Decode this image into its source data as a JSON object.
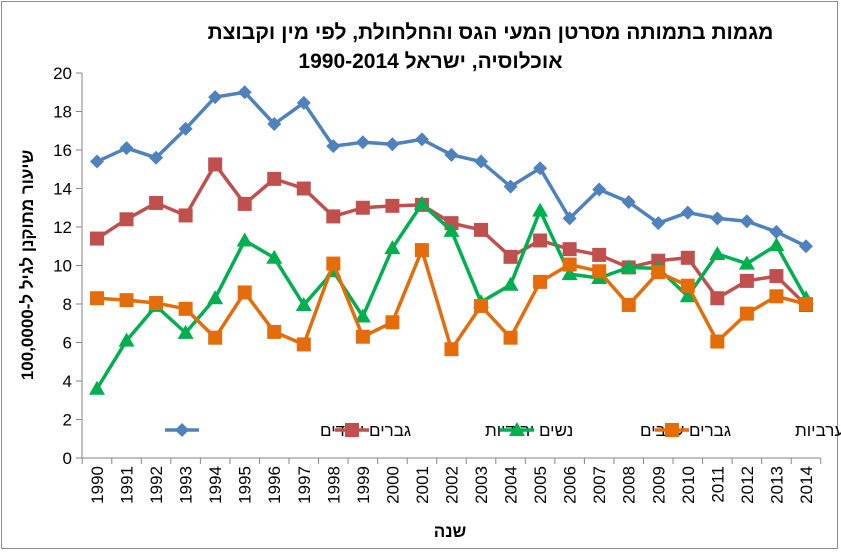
{
  "chart_data": {
    "type": "line",
    "title": "מגמות בתמותה מסרטן המעי הגס והחלחולת, לפי מין וקבוצת אוכלוסיה, ישראל 1990-2014",
    "title_lines": [
      "מגמות בתמותה מסרטן המעי הגס והחלחולת, לפי מין וקבוצת",
      "אוכלוסיה, ישראל 1990-2014"
    ],
    "xlabel": "שנה",
    "ylabel": "שיעור מתוקנן לגיל ל-100,0000",
    "ylim": [
      0,
      20
    ],
    "yticks": [
      0,
      2,
      4,
      6,
      8,
      10,
      12,
      14,
      16,
      18,
      20
    ],
    "grid": false,
    "legend_position": "bottom-inside",
    "categories": [
      "1990",
      "1991",
      "1992",
      "1993",
      "1994",
      "1995",
      "1996",
      "1997",
      "1998",
      "1999",
      "2000",
      "2001",
      "2002",
      "2003",
      "2004",
      "2005",
      "2006",
      "2007",
      "2008",
      "2009",
      "2010",
      "2011",
      "2012",
      "2013",
      "2014"
    ],
    "series": [
      {
        "name": "גברים יהודים",
        "color": "#4f81bd",
        "marker": "diamond",
        "values": [
          15.4,
          16.1,
          15.6,
          17.1,
          18.75,
          19.0,
          17.35,
          18.45,
          16.2,
          16.4,
          16.3,
          16.55,
          15.75,
          15.4,
          14.1,
          15.05,
          12.45,
          13.95,
          13.3,
          12.2,
          12.75,
          12.45,
          12.3,
          11.75,
          11.0
        ]
      },
      {
        "name": "נשים יהודיות",
        "color": "#c0504d",
        "marker": "square",
        "values": [
          11.4,
          12.4,
          13.25,
          12.6,
          15.25,
          13.2,
          14.5,
          14.0,
          12.55,
          13.0,
          13.1,
          13.15,
          12.2,
          11.85,
          10.45,
          11.3,
          10.85,
          10.55,
          9.9,
          10.25,
          10.4,
          8.3,
          9.2,
          9.45,
          7.95
        ]
      },
      {
        "name": "גברים ערבים",
        "color": "#00b050",
        "marker": "triangle",
        "values": [
          3.6,
          6.1,
          7.9,
          6.5,
          8.3,
          11.3,
          10.4,
          7.95,
          9.7,
          7.35,
          10.9,
          13.2,
          11.8,
          8.1,
          9.0,
          12.85,
          9.55,
          9.35,
          9.9,
          9.85,
          8.4,
          10.6,
          10.1,
          11.05,
          8.3
        ]
      },
      {
        "name": "נשים ערביות",
        "color": "#e46c0a",
        "marker": "square",
        "values": [
          8.3,
          8.2,
          8.05,
          7.75,
          6.25,
          8.6,
          6.55,
          5.9,
          10.1,
          6.3,
          7.05,
          10.8,
          5.65,
          7.9,
          6.25,
          9.15,
          10.05,
          9.7,
          7.95,
          9.65,
          8.95,
          6.05,
          7.5,
          8.4,
          8.0
        ]
      }
    ]
  }
}
